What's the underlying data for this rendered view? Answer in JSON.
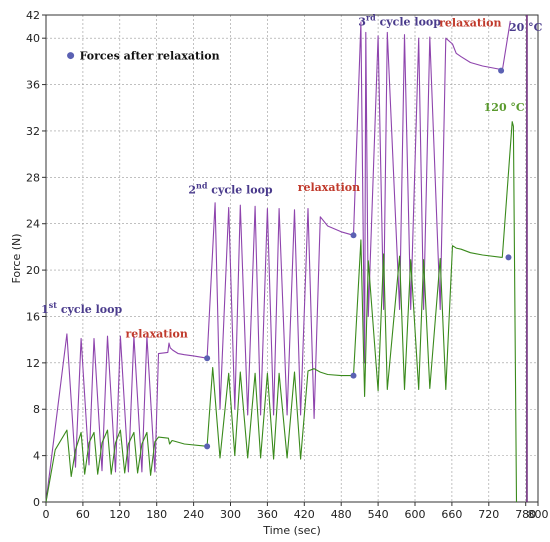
{
  "chart_data": {
    "type": "line",
    "xlabel": "Time (sec)",
    "ylabel": "Force (N)",
    "xlim": [
      0,
      800
    ],
    "ylim": [
      0,
      42
    ],
    "xticks": [
      0,
      60,
      120,
      180,
      240,
      300,
      360,
      420,
      480,
      540,
      600,
      660,
      720,
      780,
      800
    ],
    "yticks": [
      0,
      4,
      8,
      12,
      16,
      20,
      24,
      28,
      32,
      36,
      40,
      42
    ],
    "grid": true,
    "legend": {
      "marker_label": "Forces after relaxation",
      "placement": "top-left"
    },
    "colors": {
      "purple": "#8e44ad",
      "green": "#3a8a1c",
      "marker": "#5b61b3",
      "vline": "#6b2a7a"
    },
    "vertical_line_x": 782,
    "annotations": [
      {
        "id": "cycle1",
        "prefix": "1",
        "sup": "st",
        "suffix": " cycle loop",
        "x": 58,
        "y": 16.3,
        "cls": "ann-cycle"
      },
      {
        "id": "relax1",
        "text": "relaxation",
        "x": 180,
        "y": 14.2,
        "cls": "ann-relax"
      },
      {
        "id": "cycle2",
        "prefix": "2",
        "sup": "nd",
        "suffix": " cycle loop",
        "x": 300,
        "y": 26.6,
        "cls": "ann-cycle"
      },
      {
        "id": "relax2",
        "text": "relaxation",
        "x": 460,
        "y": 26.8,
        "cls": "ann-relax"
      },
      {
        "id": "cycle3",
        "prefix": "3",
        "sup": "rd",
        "suffix": " cycle loop",
        "x": 575,
        "y": 41.1,
        "cls": "ann-cycle"
      },
      {
        "id": "relax3",
        "text": "relaxation",
        "x": 690,
        "y": 41.0,
        "cls": "ann-relax"
      },
      {
        "id": "t20",
        "text": "20 °C",
        "x": 780,
        "y": 40.6,
        "cls": "ann-20"
      },
      {
        "id": "t120",
        "text": "120 °C",
        "x": 745,
        "y": 33.7,
        "cls": "ann-120"
      }
    ],
    "series": [
      {
        "name": "20 °C",
        "color": "#8e44ad",
        "x": [
          0,
          34,
          48,
          57,
          70,
          78,
          91,
          100,
          113,
          121,
          134,
          143,
          156,
          164,
          177,
          183,
          198,
          200,
          202,
          206,
          215,
          225,
          240,
          262,
          262,
          275,
          283,
          297,
          307,
          316,
          328,
          340,
          349,
          360,
          370,
          379,
          392,
          404,
          414,
          426,
          436,
          446,
          458,
          480,
          500,
          500,
          512,
          518,
          520,
          524,
          540,
          549,
          555,
          575,
          583,
          593,
          606,
          614,
          624,
          641,
          650,
          661,
          667,
          675,
          690,
          710,
          740,
          742,
          755
        ],
        "y": [
          0,
          14.5,
          3,
          14.1,
          3.2,
          14.1,
          2.7,
          14.3,
          2.6,
          14.3,
          2.6,
          14.3,
          2.6,
          14.3,
          2.6,
          12.8,
          12.9,
          13.7,
          13.3,
          13.1,
          12.8,
          12.7,
          12.6,
          12.4,
          12.4,
          25.8,
          8.0,
          25.4,
          8.0,
          25.6,
          7.5,
          25.5,
          7.5,
          25.3,
          7.5,
          25.3,
          7.5,
          25.2,
          7.5,
          25.3,
          7.2,
          24.6,
          23.8,
          23.3,
          23.0,
          23.0,
          41.4,
          12.0,
          40.5,
          16.0,
          40.2,
          16.6,
          40.5,
          16.6,
          40.3,
          16.6,
          40.0,
          16.6,
          40.1,
          16.6,
          40.0,
          39.5,
          38.7,
          38.4,
          37.9,
          37.6,
          37.3,
          37.2,
          41.5
        ]
      },
      {
        "name": "120 °C",
        "color": "#3a8a1c",
        "x": [
          0,
          15,
          34,
          41,
          48,
          57,
          63,
          70,
          78,
          84,
          91,
          100,
          106,
          113,
          121,
          128,
          134,
          143,
          149,
          156,
          164,
          170,
          177,
          183,
          199,
          201,
          205,
          225,
          262,
          262,
          271,
          283,
          297,
          307,
          316,
          328,
          340,
          349,
          360,
          370,
          379,
          392,
          404,
          414,
          426,
          436,
          446,
          458,
          480,
          500,
          500,
          512,
          518,
          524,
          540,
          549,
          555,
          575,
          583,
          593,
          606,
          614,
          624,
          641,
          650,
          661,
          667,
          675,
          690,
          710,
          740,
          742,
          758,
          760,
          765
        ],
        "y": [
          0,
          4.5,
          6.2,
          2.2,
          4.5,
          6.0,
          2.4,
          5.1,
          6.0,
          2.4,
          5.1,
          6.2,
          2.4,
          5.1,
          6.2,
          2.5,
          5.0,
          6.0,
          2.5,
          5.0,
          6.0,
          2.3,
          5.2,
          5.6,
          5.5,
          5.0,
          5.3,
          5.0,
          4.8,
          4.8,
          11.6,
          3.8,
          11.1,
          4.0,
          11.2,
          3.8,
          11.1,
          3.8,
          11.1,
          3.7,
          11.1,
          3.8,
          11.2,
          3.7,
          11.3,
          11.5,
          11.2,
          11.0,
          10.9,
          10.9,
          10.9,
          22.6,
          9.1,
          20.8,
          9.6,
          21.4,
          9.7,
          21.2,
          9.7,
          20.9,
          9.7,
          20.9,
          9.8,
          21.0,
          9.7,
          22.1,
          21.9,
          21.8,
          21.5,
          21.3,
          21.1,
          21.1,
          32.8,
          32.4,
          0
        ]
      }
    ],
    "markers": [
      {
        "x": 262,
        "y": 12.4
      },
      {
        "x": 262,
        "y": 4.8
      },
      {
        "x": 500,
        "y": 23.0
      },
      {
        "x": 500,
        "y": 10.9
      },
      {
        "x": 740,
        "y": 37.2
      },
      {
        "x": 752,
        "y": 21.1
      }
    ]
  }
}
